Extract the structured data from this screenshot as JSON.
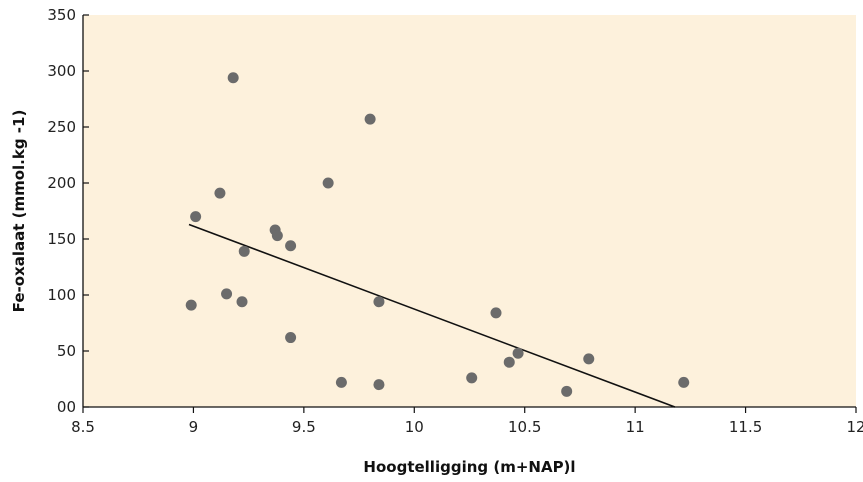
{
  "chart_data": {
    "type": "scatter",
    "xlabel": "Hoogtelligging (m+NAP)l",
    "ylabel": "Fe-oxalaat (mmol.kg -1)",
    "xlim": [
      8.5,
      12
    ],
    "ylim": [
      0,
      350
    ],
    "x_ticks": [
      8.5,
      9,
      9.5,
      10,
      10.5,
      11,
      11.5,
      12
    ],
    "x_tick_labels": [
      "8.5",
      "9",
      "9.5",
      "10",
      "10.5",
      "11",
      "11.5",
      "12"
    ],
    "y_ticks": [
      0,
      50,
      100,
      150,
      200,
      250,
      300,
      350
    ],
    "y_tick_labels": [
      "00",
      "50",
      "100",
      "150",
      "200",
      "250",
      "300",
      "350"
    ],
    "grid": false,
    "colors": {
      "background": "#fdf1dc",
      "point": "#6b6b6b",
      "line": "#111111"
    },
    "points": [
      {
        "x": 8.99,
        "y": 91
      },
      {
        "x": 9.01,
        "y": 170
      },
      {
        "x": 9.12,
        "y": 191
      },
      {
        "x": 9.15,
        "y": 101
      },
      {
        "x": 9.18,
        "y": 294
      },
      {
        "x": 9.22,
        "y": 94
      },
      {
        "x": 9.23,
        "y": 139
      },
      {
        "x": 9.37,
        "y": 158
      },
      {
        "x": 9.38,
        "y": 153
      },
      {
        "x": 9.44,
        "y": 144
      },
      {
        "x": 9.44,
        "y": 62
      },
      {
        "x": 9.61,
        "y": 200
      },
      {
        "x": 9.67,
        "y": 22
      },
      {
        "x": 9.8,
        "y": 257
      },
      {
        "x": 9.84,
        "y": 94
      },
      {
        "x": 9.84,
        "y": 20
      },
      {
        "x": 10.26,
        "y": 26
      },
      {
        "x": 10.37,
        "y": 84
      },
      {
        "x": 10.43,
        "y": 40
      },
      {
        "x": 10.47,
        "y": 48
      },
      {
        "x": 10.69,
        "y": 14
      },
      {
        "x": 10.79,
        "y": 43
      },
      {
        "x": 11.22,
        "y": 22
      }
    ],
    "trendline": {
      "x": [
        8.98,
        11.18
      ],
      "y": [
        163,
        0
      ]
    }
  }
}
